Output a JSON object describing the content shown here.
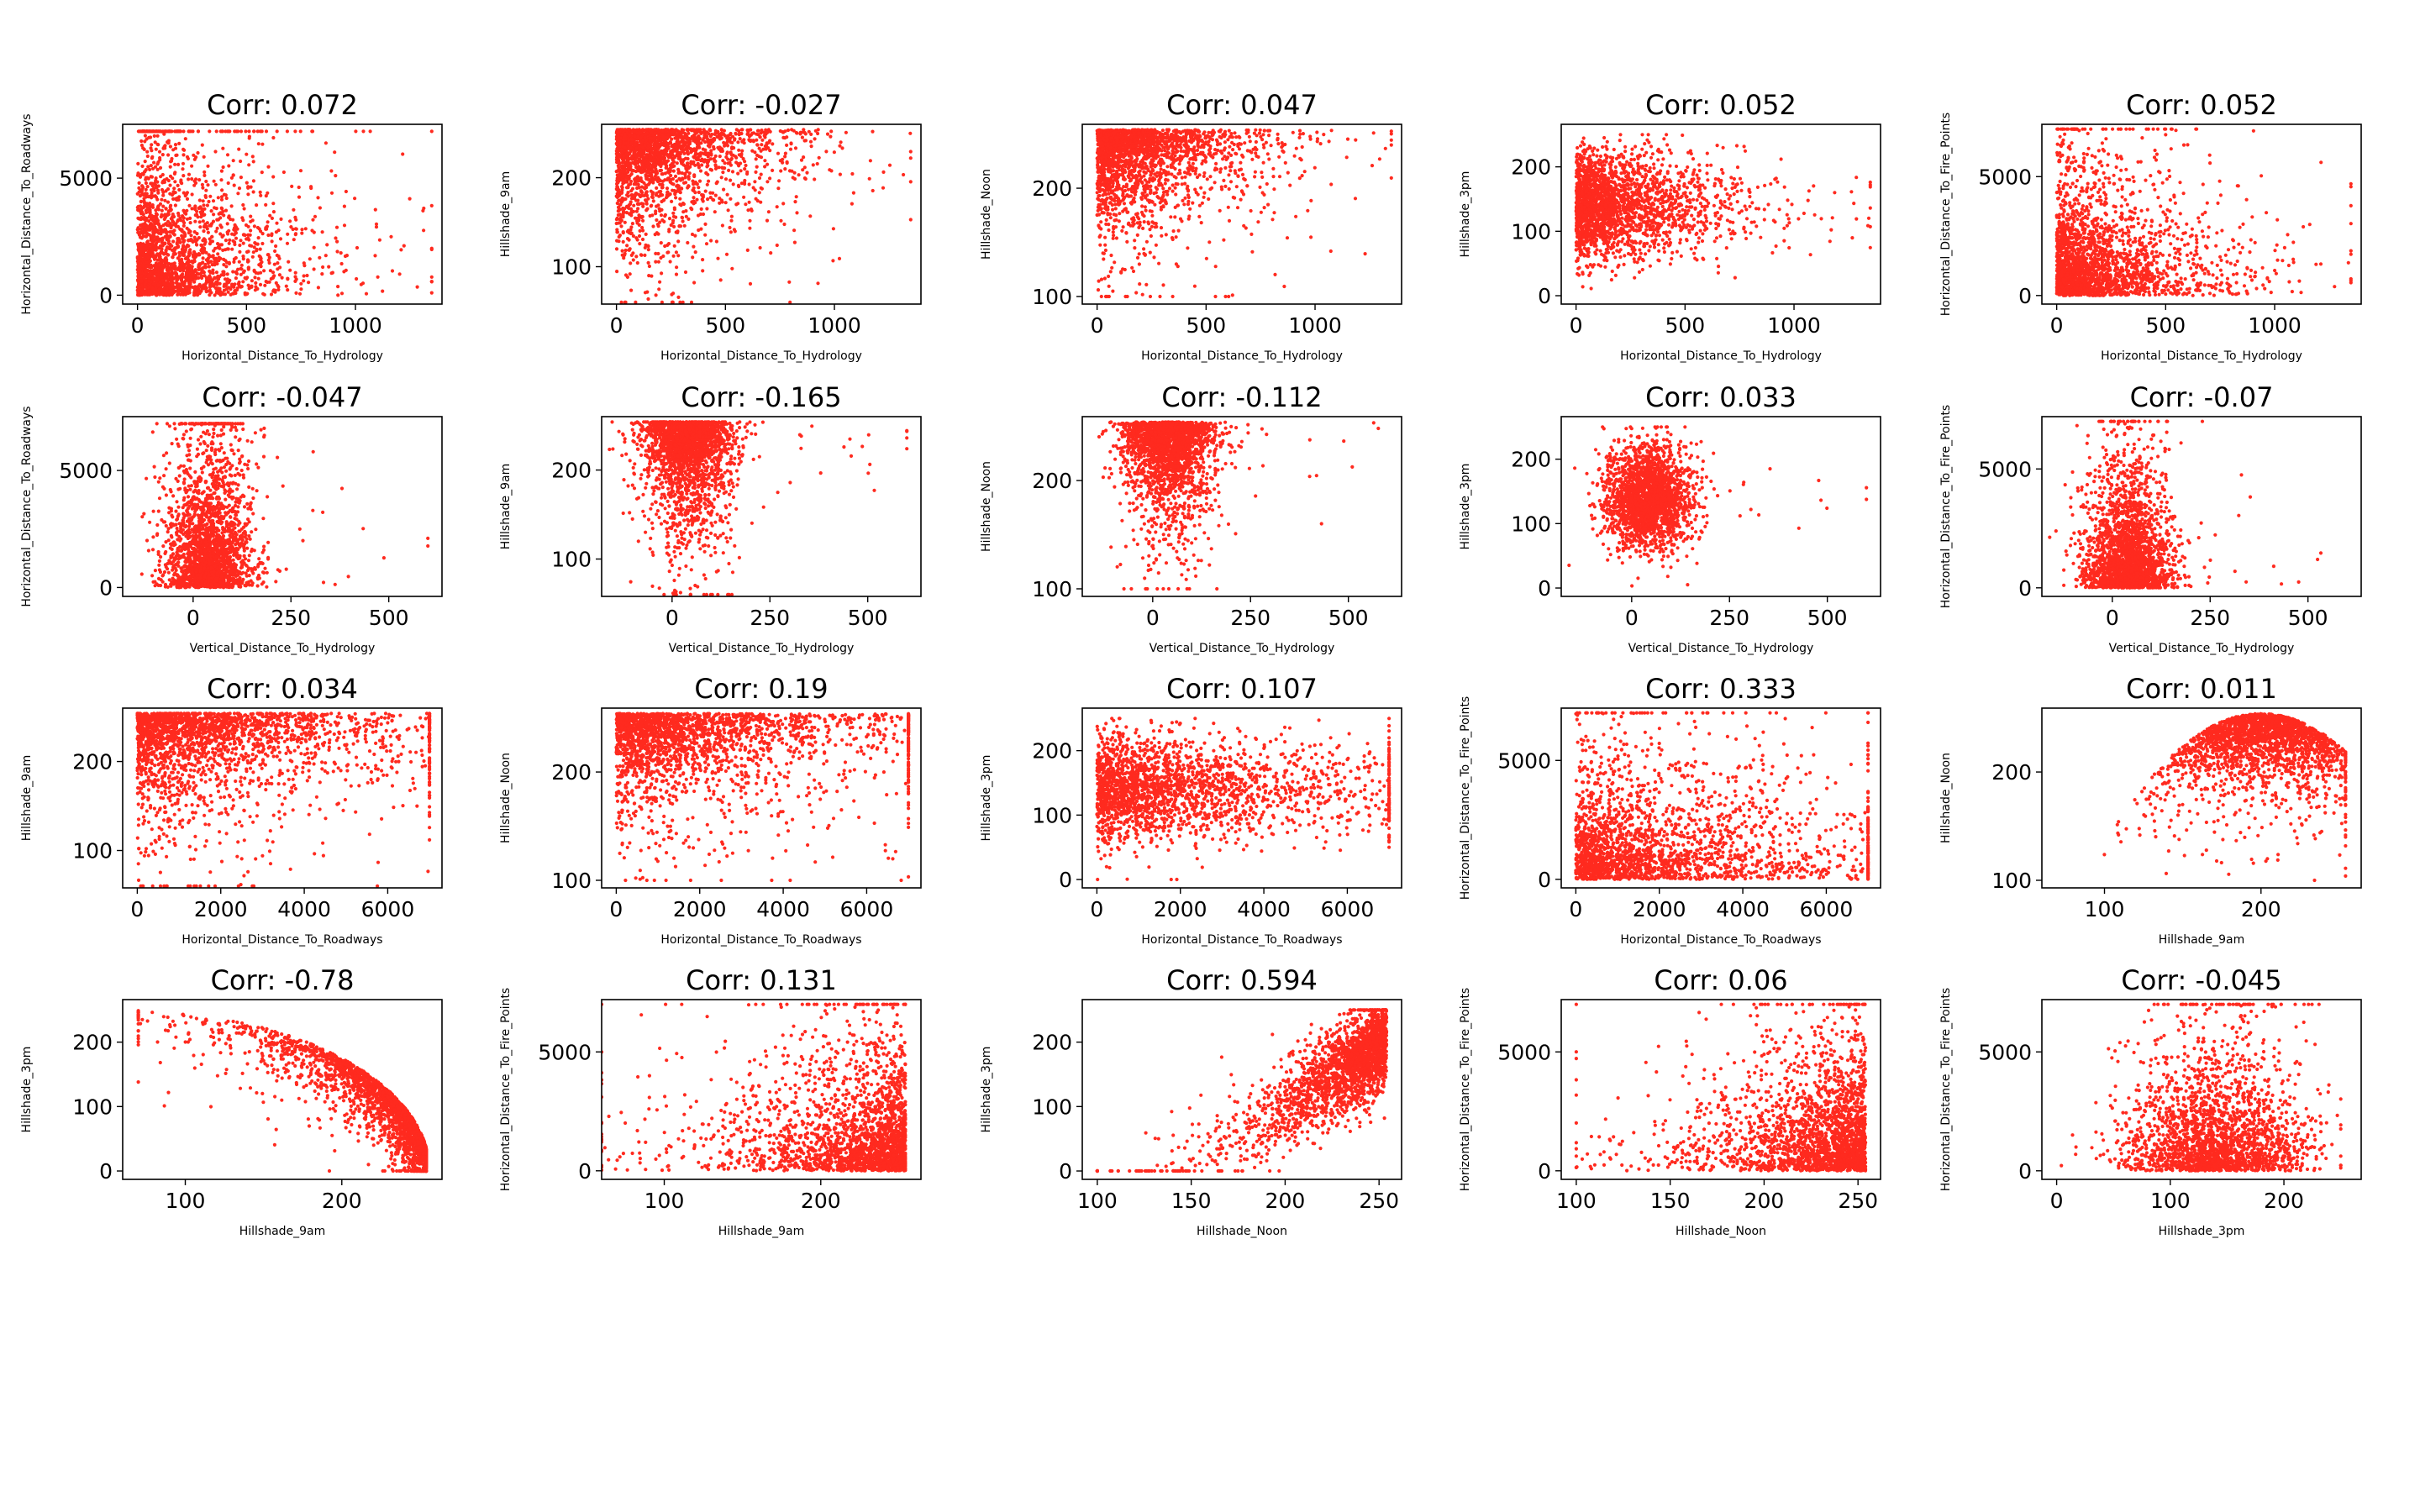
{
  "figure": {
    "point_color": "#ff2a1f",
    "background": "#ffffff"
  },
  "chart_data": [
    {
      "type": "scatter",
      "title": "Corr: 0.072",
      "xlabel": "Horizontal_Distance_To_Hydrology",
      "ylabel": "Horizontal_Distance_To_Roadways",
      "xlim": [
        -68,
        1397
      ],
      "ylim": [
        -380,
        7300
      ],
      "xticks": [
        0,
        500,
        1000
      ],
      "yticks": [
        0,
        5000
      ],
      "pattern": "hydro_rh"
    },
    {
      "type": "scatter",
      "title": "Corr: -0.027",
      "xlabel": "Horizontal_Distance_To_Hydrology",
      "ylabel": "Hillshade_9am",
      "xlim": [
        -68,
        1397
      ],
      "ylim": [
        58,
        260
      ],
      "xticks": [
        0,
        500,
        1000
      ],
      "yticks": [
        100,
        200
      ],
      "pattern": "hydro_9am"
    },
    {
      "type": "scatter",
      "title": "Corr: 0.047",
      "xlabel": "Horizontal_Distance_To_Hydrology",
      "ylabel": "Hillshade_Noon",
      "xlim": [
        -68,
        1397
      ],
      "ylim": [
        93,
        259
      ],
      "xticks": [
        0,
        500,
        1000
      ],
      "yticks": [
        100,
        200
      ],
      "pattern": "hydro_noon"
    },
    {
      "type": "scatter",
      "title": "Corr: 0.052",
      "xlabel": "Horizontal_Distance_To_Hydrology",
      "ylabel": "Hillshade_3pm",
      "xlim": [
        -68,
        1397
      ],
      "ylim": [
        -13,
        266
      ],
      "xticks": [
        0,
        500,
        1000
      ],
      "yticks": [
        0,
        100,
        200
      ],
      "pattern": "hydro_3pm"
    },
    {
      "type": "scatter",
      "title": "Corr: 0.052",
      "xlabel": "Horizontal_Distance_To_Hydrology",
      "ylabel": "Horizontal_Distance_To_Fire_Points",
      "xlim": [
        -68,
        1397
      ],
      "ylim": [
        -360,
        7200
      ],
      "xticks": [
        0,
        500,
        1000
      ],
      "yticks": [
        0,
        5000
      ],
      "pattern": "hydro_fire"
    },
    {
      "type": "scatter",
      "title": "Corr: -0.047",
      "xlabel": "Vertical_Distance_To_Hydrology",
      "ylabel": "Horizontal_Distance_To_Roadways",
      "xlim": [
        -180,
        636
      ],
      "ylim": [
        -380,
        7300
      ],
      "xticks": [
        0,
        250,
        500
      ],
      "yticks": [
        0,
        5000
      ],
      "pattern": "vert_rh"
    },
    {
      "type": "scatter",
      "title": "Corr: -0.165",
      "xlabel": "Vertical_Distance_To_Hydrology",
      "ylabel": "Hillshade_9am",
      "xlim": [
        -180,
        636
      ],
      "ylim": [
        58,
        260
      ],
      "xticks": [
        0,
        250,
        500
      ],
      "yticks": [
        100,
        200
      ],
      "pattern": "vert_9am"
    },
    {
      "type": "scatter",
      "title": "Corr: -0.112",
      "xlabel": "Vertical_Distance_To_Hydrology",
      "ylabel": "Hillshade_Noon",
      "xlim": [
        -180,
        636
      ],
      "ylim": [
        93,
        259
      ],
      "xticks": [
        0,
        250,
        500
      ],
      "yticks": [
        100,
        200
      ],
      "pattern": "vert_noon"
    },
    {
      "type": "scatter",
      "title": "Corr: 0.033",
      "xlabel": "Vertical_Distance_To_Hydrology",
      "ylabel": "Hillshade_3pm",
      "xlim": [
        -180,
        636
      ],
      "ylim": [
        -13,
        266
      ],
      "xticks": [
        0,
        250,
        500
      ],
      "yticks": [
        0,
        100,
        200
      ],
      "pattern": "vert_3pm"
    },
    {
      "type": "scatter",
      "title": "Corr: -0.07",
      "xlabel": "Vertical_Distance_To_Hydrology",
      "ylabel": "Horizontal_Distance_To_Fire_Points",
      "xlim": [
        -180,
        636
      ],
      "ylim": [
        -360,
        7200
      ],
      "xticks": [
        0,
        250,
        500
      ],
      "yticks": [
        0,
        5000
      ],
      "pattern": "vert_fire"
    },
    {
      "type": "scatter",
      "title": "Corr: 0.034",
      "xlabel": "Horizontal_Distance_To_Roadways",
      "ylabel": "Hillshade_9am",
      "xlim": [
        -350,
        7300
      ],
      "ylim": [
        58,
        260
      ],
      "xticks": [
        0,
        2000,
        4000,
        6000
      ],
      "yticks": [
        100,
        200
      ],
      "pattern": "road_9am"
    },
    {
      "type": "scatter",
      "title": "Corr: 0.19",
      "xlabel": "Horizontal_Distance_To_Roadways",
      "ylabel": "Hillshade_Noon",
      "xlim": [
        -350,
        7300
      ],
      "ylim": [
        93,
        259
      ],
      "xticks": [
        0,
        2000,
        4000,
        6000
      ],
      "yticks": [
        100,
        200
      ],
      "pattern": "road_noon"
    },
    {
      "type": "scatter",
      "title": "Corr: 0.107",
      "xlabel": "Horizontal_Distance_To_Roadways",
      "ylabel": "Hillshade_3pm",
      "xlim": [
        -350,
        7300
      ],
      "ylim": [
        -13,
        266
      ],
      "xticks": [
        0,
        2000,
        4000,
        6000
      ],
      "yticks": [
        0,
        100,
        200
      ],
      "pattern": "road_3pm"
    },
    {
      "type": "scatter",
      "title": "Corr: 0.333",
      "xlabel": "Horizontal_Distance_To_Roadways",
      "ylabel": "Horizontal_Distance_To_Fire_Points",
      "xlim": [
        -350,
        7300
      ],
      "ylim": [
        -360,
        7200
      ],
      "xticks": [
        0,
        2000,
        4000,
        6000
      ],
      "yticks": [
        0,
        5000
      ],
      "pattern": "road_fire"
    },
    {
      "type": "scatter",
      "title": "Corr: 0.011",
      "xlabel": "Hillshade_9am",
      "ylabel": "Hillshade_Noon",
      "xlim": [
        60,
        264
      ],
      "ylim": [
        93,
        259
      ],
      "xticks": [
        100,
        200
      ],
      "yticks": [
        100,
        200
      ],
      "pattern": "h9_noon"
    },
    {
      "type": "scatter",
      "title": "Corr: -0.78",
      "xlabel": "Hillshade_9am",
      "ylabel": "Hillshade_3pm",
      "xlim": [
        60,
        264
      ],
      "ylim": [
        -13,
        266
      ],
      "xticks": [
        100,
        200
      ],
      "yticks": [
        0,
        100,
        200
      ],
      "pattern": "h9_3pm"
    },
    {
      "type": "scatter",
      "title": "Corr: 0.131",
      "xlabel": "Hillshade_9am",
      "ylabel": "Horizontal_Distance_To_Fire_Points",
      "xlim": [
        60,
        264
      ],
      "ylim": [
        -360,
        7200
      ],
      "xticks": [
        100,
        200
      ],
      "yticks": [
        0,
        5000
      ],
      "pattern": "h9_fire"
    },
    {
      "type": "scatter",
      "title": "Corr: 0.594",
      "xlabel": "Hillshade_Noon",
      "ylabel": "Hillshade_3pm",
      "xlim": [
        92,
        262
      ],
      "ylim": [
        -13,
        266
      ],
      "xticks": [
        100,
        150,
        200,
        250
      ],
      "yticks": [
        0,
        100,
        200
      ],
      "pattern": "noon_3pm"
    },
    {
      "type": "scatter",
      "title": "Corr: 0.06",
      "xlabel": "Hillshade_Noon",
      "ylabel": "Horizontal_Distance_To_Fire_Points",
      "xlim": [
        92,
        262
      ],
      "ylim": [
        -360,
        7200
      ],
      "xticks": [
        100,
        150,
        200,
        250
      ],
      "yticks": [
        0,
        5000
      ],
      "pattern": "noon_fire"
    },
    {
      "type": "scatter",
      "title": "Corr: -0.045",
      "xlabel": "Hillshade_3pm",
      "ylabel": "Horizontal_Distance_To_Fire_Points",
      "xlim": [
        -13,
        268
      ],
      "ylim": [
        -360,
        7200
      ],
      "xticks": [
        0,
        100,
        200
      ],
      "yticks": [
        0,
        5000
      ],
      "pattern": "h3_fire"
    }
  ]
}
